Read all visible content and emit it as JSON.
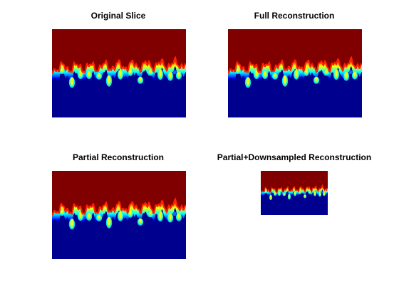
{
  "figure": {
    "background": "#ffffff",
    "panels": [
      {
        "id": "original",
        "title": "Original Slice"
      },
      {
        "id": "full",
        "title": "Full Reconstruction"
      },
      {
        "id": "partial",
        "title": "Partial Reconstruction"
      },
      {
        "id": "downsampled",
        "title": "Partial+Downsampled Reconstruction"
      }
    ]
  },
  "colormap": {
    "name": "jet",
    "top_color": "#800000",
    "bottom_color": "#00008f",
    "stops": [
      "#800000",
      "#ff0000",
      "#ff8000",
      "#ffff00",
      "#80ff80",
      "#00ffff",
      "#0080ff",
      "#0000ff",
      "#00008f"
    ]
  }
}
